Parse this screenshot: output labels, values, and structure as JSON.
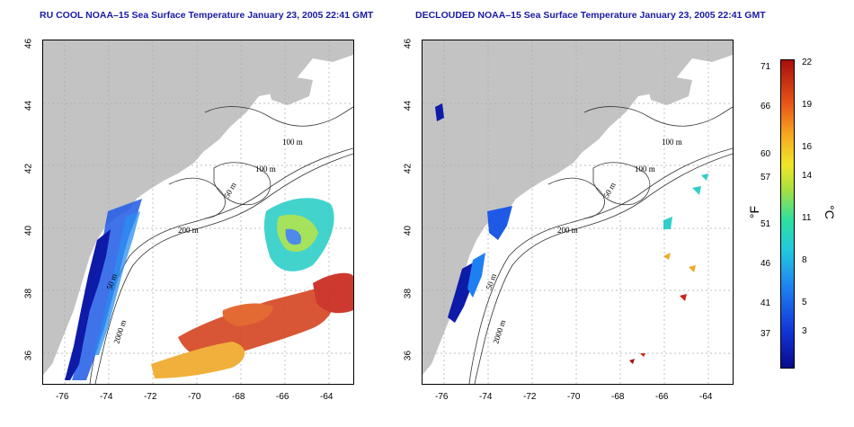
{
  "panels": [
    {
      "title": "RU COOL NOAA–15 Sea Surface Temperature January 23, 2005 22:41 GMT"
    },
    {
      "title": "DECLOUDED NOAA–15 Sea Surface Temperature January 23, 2005 22:41 GMT"
    }
  ],
  "axes": {
    "lat_ticks": [
      "46",
      "44",
      "42",
      "40",
      "38",
      "36"
    ],
    "lon_ticks": [
      "-76",
      "-74",
      "-72",
      "-70",
      "-68",
      "-66",
      "-64"
    ],
    "lon_range": [
      -77,
      -63
    ],
    "lat_range": [
      35,
      46
    ]
  },
  "contour_labels": {
    "left": [
      "100 m",
      "100 m",
      "50 m",
      "200 m",
      "50 m",
      "2000 m"
    ],
    "right": [
      "100 m",
      "100 m",
      "50 m",
      "200 m",
      "50 m",
      "2000 m"
    ]
  },
  "colorbar": {
    "fahrenheit_label": "°F",
    "celsius_label": "°C",
    "fahrenheit_ticks": [
      "71",
      "66",
      "60",
      "57",
      "51",
      "46",
      "41",
      "37"
    ],
    "celsius_ticks": [
      "22",
      "19",
      "16",
      "14",
      "11",
      "8",
      "5",
      "3"
    ],
    "colors": [
      "#0a0a8c",
      "#1236d8",
      "#1e80f0",
      "#22c8e0",
      "#2ee0a0",
      "#a8e040",
      "#f2e628",
      "#f6a620",
      "#e85418",
      "#a80e0e"
    ]
  },
  "colors": {
    "land": "#c3c3c3",
    "title": "#1a1aa6",
    "grid": "#aaaaaa"
  }
}
